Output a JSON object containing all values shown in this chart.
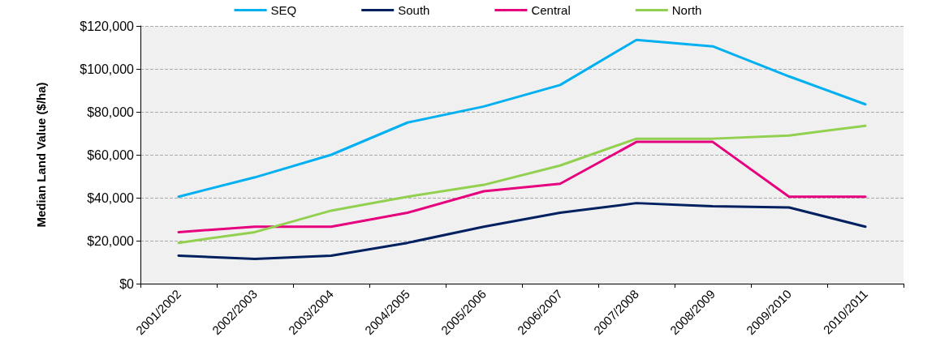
{
  "chart_data": {
    "type": "line",
    "ylabel": "Median Land Value ($/ha)",
    "categories": [
      "2001/2002",
      "2002/2003",
      "2003/2004",
      "2004/2005",
      "2005/2006",
      "2006/2007",
      "2007/2008",
      "2008/2009",
      "2009/2010",
      "2010/2011"
    ],
    "series": [
      {
        "name": "SEQ",
        "color": "#00b0f0",
        "values": [
          40500,
          49500,
          60000,
          75000,
          82500,
          92500,
          113500,
          110500,
          96500,
          83500
        ]
      },
      {
        "name": "South",
        "color": "#002060",
        "values": [
          13000,
          11500,
          13000,
          19000,
          26500,
          33000,
          37500,
          36000,
          35500,
          26500
        ]
      },
      {
        "name": "Central",
        "color": "#e6007e",
        "values": [
          24000,
          26500,
          26500,
          33000,
          43000,
          46500,
          66000,
          66000,
          40500,
          40500
        ]
      },
      {
        "name": "North",
        "color": "#92d050",
        "values": [
          19000,
          24000,
          34000,
          40500,
          46000,
          55000,
          67500,
          67500,
          69000,
          73500
        ]
      }
    ],
    "ylim": [
      0,
      120000
    ],
    "yticks": [
      {
        "value": 0,
        "label": "$0"
      },
      {
        "value": 20000,
        "label": "$20,000"
      },
      {
        "value": 40000,
        "label": "$40,000"
      },
      {
        "value": 60000,
        "label": "$60,000"
      },
      {
        "value": 80000,
        "label": "$80,000"
      },
      {
        "value": 100000,
        "label": "$100,000"
      },
      {
        "value": 120000,
        "label": "$120,000"
      }
    ],
    "grid": "y",
    "legend": "top",
    "marker": "none",
    "line_style": "solid"
  }
}
